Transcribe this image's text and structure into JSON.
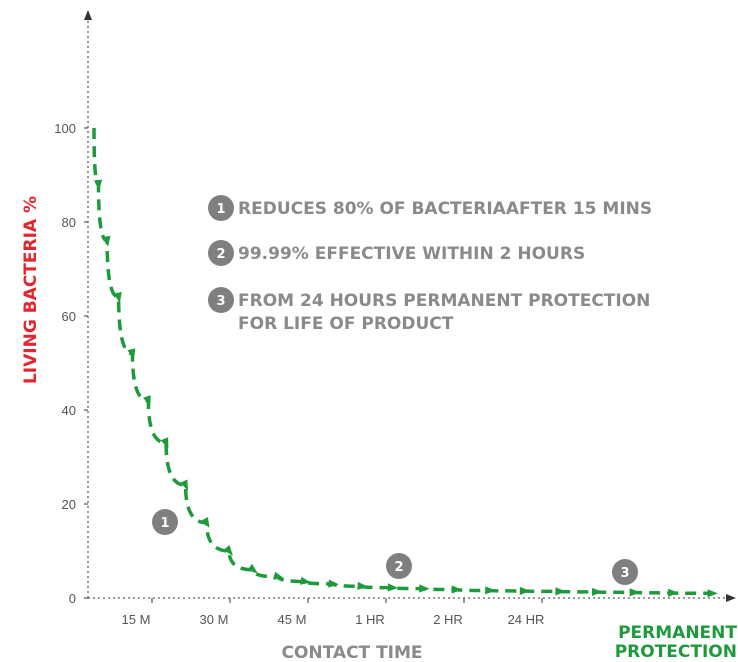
{
  "chart_data": {
    "type": "line",
    "ylabel": "LIVING BACTERIA %",
    "xlabel": "CONTACT TIME",
    "ylim": [
      0,
      100
    ],
    "yticks": [
      "0",
      "20",
      "40",
      "60",
      "80",
      "100"
    ],
    "xticks": [
      "15 M",
      "30 M",
      "45 M",
      "1 HR",
      "2 HR",
      "24 HR"
    ],
    "end_label": [
      "PERMANENT",
      "PROTECTION"
    ],
    "grid": false,
    "series": [
      {
        "values": [
          100,
          88,
          76,
          64,
          52,
          42,
          33,
          24,
          16,
          10,
          6,
          4.5,
          3.5,
          3,
          2.5,
          2.2,
          2,
          1.8,
          1.6,
          1.5,
          1.4,
          1.3,
          1.2,
          1.1,
          1
        ]
      }
    ],
    "annotations": [
      {
        "badge": "1",
        "text": "REDUCES 80% OF BACTERIAAFTER 15 MINS"
      },
      {
        "badge": "2",
        "text": "99.99% EFFECTIVE WITHIN 2 HOURS"
      },
      {
        "badge": "3",
        "text": [
          "FROM 24 HOURS PERMANENT PROTECTION",
          "FOR LIFE OF PRODUCT"
        ]
      }
    ],
    "colors": {
      "curve": "#1e9a3c",
      "ylabel": "#e3262e",
      "xlabel": "#8a8a8a",
      "badge": "#7f7f7f",
      "axis": "#333333"
    }
  }
}
